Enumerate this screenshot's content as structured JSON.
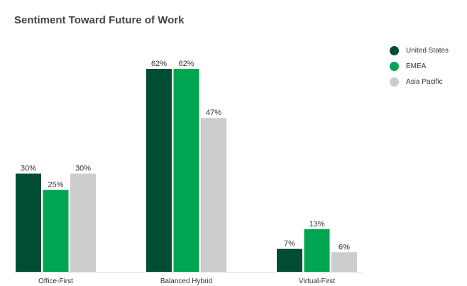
{
  "chart_data": {
    "type": "bar",
    "title": "Sentiment Toward Future of Work",
    "categories": [
      "Office-First",
      "Balanced Hybrid",
      "Virtual-First"
    ],
    "series": [
      {
        "name": "United States",
        "color": "#004d33",
        "values": [
          30,
          62,
          7
        ]
      },
      {
        "name": "EMEA",
        "color": "#00a551",
        "values": [
          25,
          62,
          13
        ]
      },
      {
        "name": "Asia Pacific",
        "color": "#cccccc",
        "values": [
          30,
          47,
          6
        ]
      }
    ],
    "value_format": "%",
    "ylim": [
      0,
      62
    ],
    "grid": false,
    "legend": "top-right"
  }
}
